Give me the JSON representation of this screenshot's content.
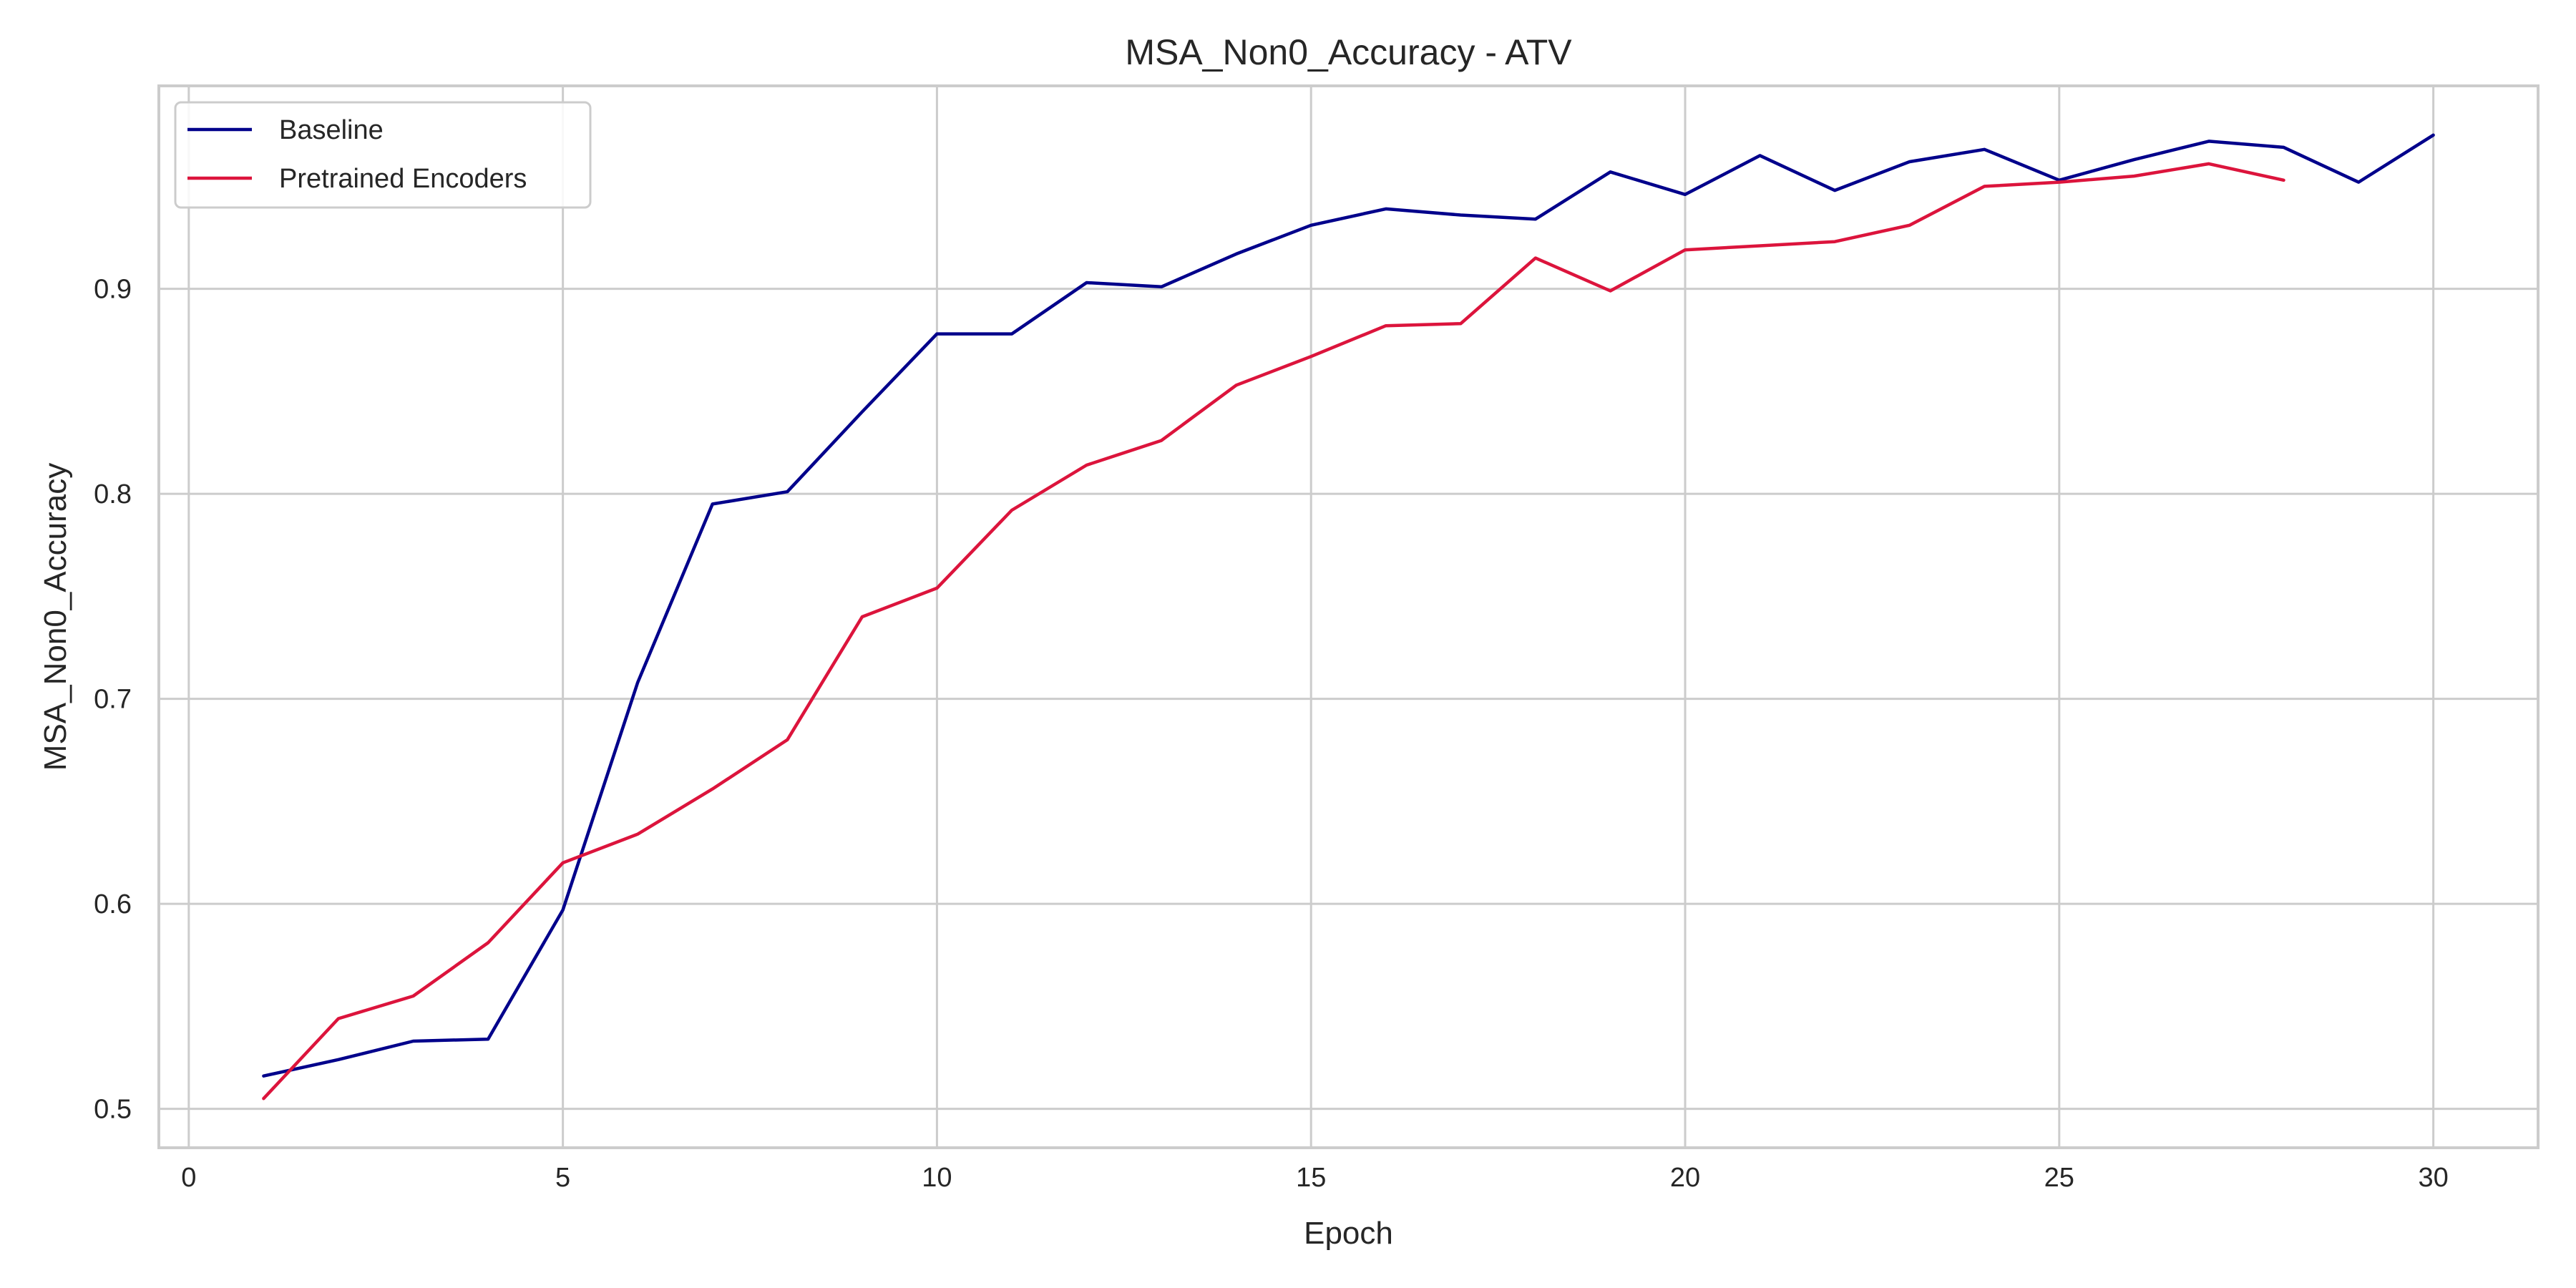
{
  "chart_data": {
    "type": "line",
    "title": "MSA_Non0_Accuracy - ATV",
    "xlabel": "Epoch",
    "ylabel": "MSA_Non0_Accuracy",
    "xlim": [
      -0.4,
      31.4
    ],
    "ylim": [
      0.481,
      0.999
    ],
    "xticks": [
      0,
      5,
      10,
      15,
      20,
      25,
      30
    ],
    "yticks": [
      0.5,
      0.6,
      0.7,
      0.8,
      0.9
    ],
    "grid": true,
    "legend_position": "top-left",
    "series": [
      {
        "name": "Baseline",
        "color": "#00008b",
        "x": [
          1,
          2,
          3,
          4,
          5,
          6,
          7,
          8,
          9,
          10,
          11,
          12,
          13,
          14,
          15,
          16,
          17,
          18,
          19,
          20,
          21,
          22,
          23,
          24,
          25,
          26,
          27,
          28,
          29,
          30
        ],
        "y": [
          0.516,
          0.524,
          0.533,
          0.534,
          0.597,
          0.708,
          0.795,
          0.801,
          0.84,
          0.878,
          0.878,
          0.903,
          0.901,
          0.917,
          0.931,
          0.939,
          0.936,
          0.934,
          0.957,
          0.946,
          0.965,
          0.948,
          0.962,
          0.968,
          0.953,
          0.963,
          0.972,
          0.969,
          0.952,
          0.975
        ]
      },
      {
        "name": "Pretrained Encoders",
        "color": "#dc143c",
        "x": [
          1,
          2,
          3,
          4,
          5,
          6,
          7,
          8,
          9,
          10,
          11,
          12,
          13,
          14,
          15,
          16,
          17,
          18,
          19,
          20,
          21,
          22,
          23,
          24,
          25,
          26,
          27,
          28
        ],
        "y": [
          0.505,
          0.544,
          0.555,
          0.581,
          0.62,
          0.634,
          0.656,
          0.68,
          0.74,
          0.754,
          0.792,
          0.814,
          0.826,
          0.853,
          0.867,
          0.882,
          0.883,
          0.915,
          0.899,
          0.919,
          0.921,
          0.923,
          0.931,
          0.95,
          0.952,
          0.955,
          0.961,
          0.953
        ]
      }
    ]
  }
}
